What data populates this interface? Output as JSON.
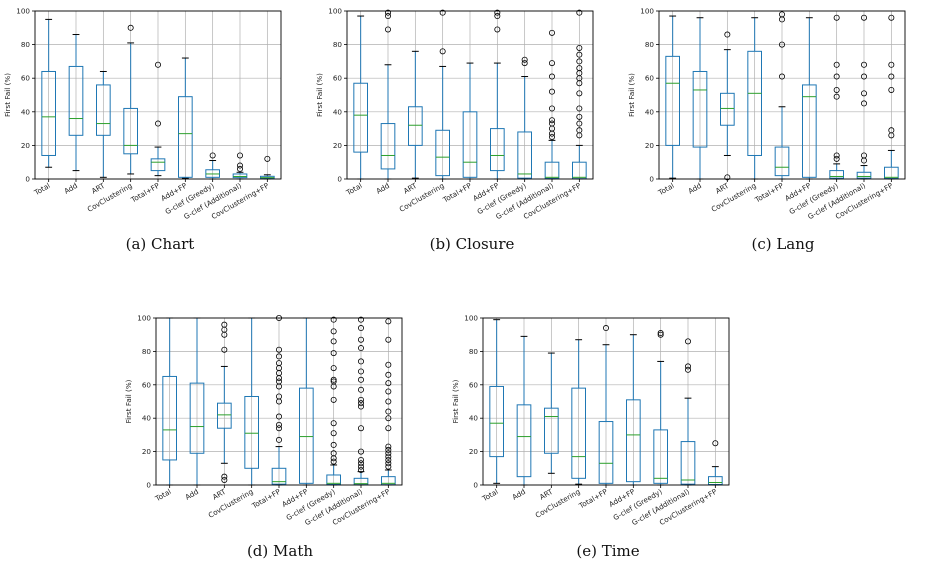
{
  "colors": {
    "box": "#1f77b4",
    "median": "#2ca02c",
    "grid": "#b0b0b0",
    "axis": "#000000"
  },
  "chart_data": [
    {
      "type": "box",
      "caption": "(a)  Chart",
      "ylabel": "First Fail (%)",
      "ylim": [
        0,
        100
      ],
      "yticks": [
        0,
        20,
        40,
        60,
        80,
        100
      ],
      "grid": true,
      "categories": [
        "Total",
        "Add",
        "ART",
        "CovClustering",
        "Total+FP",
        "Add+FP",
        "G-clef (Greedy)",
        "G-clef (Additional)",
        "CovClustering+FP"
      ],
      "series": [
        {
          "q1": 14,
          "median": 37,
          "q3": 64,
          "lo": 7,
          "hi": 95,
          "outliers": []
        },
        {
          "q1": 26,
          "median": 36,
          "q3": 67,
          "lo": 5,
          "hi": 86,
          "outliers": []
        },
        {
          "q1": 26,
          "median": 33,
          "q3": 56,
          "lo": 1,
          "hi": 64,
          "outliers": []
        },
        {
          "q1": 15,
          "median": 20,
          "q3": 42,
          "lo": 3,
          "hi": 81,
          "outliers": [
            90
          ]
        },
        {
          "q1": 5,
          "median": 10,
          "q3": 12,
          "lo": 2,
          "hi": 19,
          "outliers": [
            33,
            68
          ]
        },
        {
          "q1": 1,
          "median": 27,
          "q3": 49,
          "lo": 0.5,
          "hi": 72,
          "outliers": []
        },
        {
          "q1": 1,
          "median": 3,
          "q3": 5.5,
          "lo": 0,
          "hi": 11,
          "outliers": [
            14
          ]
        },
        {
          "q1": 0.8,
          "median": 1.5,
          "q3": 3,
          "lo": 0,
          "hi": 4,
          "outliers": [
            6,
            8,
            14
          ]
        },
        {
          "q1": 0.4,
          "median": 0.8,
          "q3": 1.6,
          "lo": 0,
          "hi": 2.5,
          "outliers": [
            12
          ]
        }
      ]
    },
    {
      "type": "box",
      "caption": "(b)  Closure",
      "ylabel": "First Fail (%)",
      "ylim": [
        0,
        100
      ],
      "yticks": [
        0,
        20,
        40,
        60,
        80,
        100
      ],
      "grid": true,
      "categories": [
        "Total",
        "Add",
        "ART",
        "CovClustering",
        "Total+FP",
        "Add+FP",
        "G-clef (Greedy)",
        "G-clef (Additional)",
        "CovClustering+FP"
      ],
      "series": [
        {
          "q1": 16,
          "median": 38,
          "q3": 57,
          "lo": 0,
          "hi": 97,
          "outliers": []
        },
        {
          "q1": 6,
          "median": 14,
          "q3": 33,
          "lo": 0,
          "hi": 68,
          "outliers": [
            89,
            97,
            99
          ]
        },
        {
          "q1": 20,
          "median": 32,
          "q3": 43,
          "lo": 0.5,
          "hi": 76,
          "outliers": []
        },
        {
          "q1": 2,
          "median": 13,
          "q3": 29,
          "lo": 0,
          "hi": 67,
          "outliers": [
            76,
            99
          ]
        },
        {
          "q1": 1,
          "median": 10,
          "q3": 40,
          "lo": 0,
          "hi": 69,
          "outliers": []
        },
        {
          "q1": 5,
          "median": 14,
          "q3": 30,
          "lo": 0,
          "hi": 69,
          "outliers": [
            89,
            97,
            99
          ]
        },
        {
          "q1": 0.5,
          "median": 3,
          "q3": 28,
          "lo": 0,
          "hi": 61,
          "outliers": [
            69,
            71
          ]
        },
        {
          "q1": 0.3,
          "median": 1,
          "q3": 10,
          "lo": 0,
          "hi": 23,
          "outliers": [
            25,
            27,
            30,
            33,
            35,
            42,
            52,
            61,
            69,
            87
          ]
        },
        {
          "q1": 0.2,
          "median": 1,
          "q3": 10,
          "lo": 0,
          "hi": 20,
          "outliers": [
            26,
            29,
            33,
            37,
            42,
            51,
            57,
            60,
            63,
            66,
            70,
            74,
            78,
            99
          ]
        }
      ]
    },
    {
      "type": "box",
      "caption": "(c)  Lang",
      "ylabel": "First Fail (%)",
      "ylim": [
        0,
        100
      ],
      "yticks": [
        0,
        20,
        40,
        60,
        80,
        100
      ],
      "grid": true,
      "categories": [
        "Total",
        "Add",
        "ART",
        "CovClustering",
        "Total+FP",
        "Add+FP",
        "G-clef (Greedy)",
        "G-clef (Additional)",
        "CovClustering+FP"
      ],
      "series": [
        {
          "q1": 20,
          "median": 57,
          "q3": 73,
          "lo": 0.5,
          "hi": 97,
          "outliers": []
        },
        {
          "q1": 19,
          "median": 53,
          "q3": 64,
          "lo": 0,
          "hi": 96,
          "outliers": []
        },
        {
          "q1": 32,
          "median": 42,
          "q3": 51,
          "lo": 14,
          "hi": 77,
          "outliers": [
            1,
            86
          ]
        },
        {
          "q1": 14,
          "median": 51,
          "q3": 76,
          "lo": 0,
          "hi": 96,
          "outliers": []
        },
        {
          "q1": 2,
          "median": 7,
          "q3": 19,
          "lo": 0,
          "hi": 43,
          "outliers": [
            61,
            80,
            95,
            98
          ]
        },
        {
          "q1": 1,
          "median": 49,
          "q3": 56,
          "lo": 0,
          "hi": 96,
          "outliers": []
        },
        {
          "q1": 0.5,
          "median": 1.5,
          "q3": 5,
          "lo": 0,
          "hi": 9,
          "outliers": [
            12,
            14,
            49,
            53,
            61,
            68,
            96
          ]
        },
        {
          "q1": 0.5,
          "median": 1.5,
          "q3": 4,
          "lo": 0,
          "hi": 8,
          "outliers": [
            11,
            14,
            45,
            51,
            61,
            68,
            96
          ]
        },
        {
          "q1": 0.3,
          "median": 1,
          "q3": 7,
          "lo": 0,
          "hi": 17,
          "outliers": [
            26,
            29,
            53,
            61,
            68,
            96
          ]
        }
      ]
    },
    {
      "type": "box",
      "caption": "(d)  Math",
      "ylabel": "First Fail (%)",
      "ylim": [
        0,
        100
      ],
      "yticks": [
        0,
        20,
        40,
        60,
        80,
        100
      ],
      "grid": true,
      "categories": [
        "Total",
        "Add",
        "ART",
        "CovClustering",
        "Total+FP",
        "Add+FP",
        "G-clef (Greedy)",
        "G-clef (Additional)",
        "CovClustering+FP"
      ],
      "series": [
        {
          "q1": 15,
          "median": 33,
          "q3": 65,
          "lo": 0,
          "hi": 100,
          "outliers": []
        },
        {
          "q1": 19,
          "median": 35,
          "q3": 61,
          "lo": 0,
          "hi": 100,
          "outliers": []
        },
        {
          "q1": 34,
          "median": 42,
          "q3": 49,
          "lo": 13,
          "hi": 71,
          "outliers": [
            3,
            5,
            81,
            90,
            93,
            96
          ]
        },
        {
          "q1": 10,
          "median": 31,
          "q3": 53,
          "lo": 0,
          "hi": 100,
          "outliers": []
        },
        {
          "q1": 0.5,
          "median": 2,
          "q3": 10,
          "lo": 0,
          "hi": 23,
          "outliers": [
            27,
            34,
            36,
            41,
            50,
            53,
            59,
            62,
            64,
            67,
            70,
            73,
            77,
            81,
            100
          ]
        },
        {
          "q1": 1,
          "median": 29,
          "q3": 58,
          "lo": 0,
          "hi": 100,
          "outliers": []
        },
        {
          "q1": 0.3,
          "median": 1,
          "q3": 6,
          "lo": 0,
          "hi": 12,
          "outliers": [
            14,
            16,
            19,
            24,
            31,
            37,
            51,
            59,
            62,
            63,
            70,
            79,
            86,
            92,
            99
          ]
        },
        {
          "q1": 0.2,
          "median": 0.8,
          "q3": 4,
          "lo": 0,
          "hi": 8,
          "outliers": [
            9,
            11,
            13,
            15,
            20,
            34,
            47,
            49,
            51,
            57,
            63,
            68,
            74,
            82,
            87,
            94,
            99
          ]
        },
        {
          "q1": 0.2,
          "median": 1,
          "q3": 5,
          "lo": 0,
          "hi": 9,
          "outliers": [
            11,
            13,
            15,
            17,
            19,
            21,
            23,
            34,
            40,
            44,
            50,
            56,
            61,
            66,
            72,
            87,
            98
          ]
        }
      ]
    },
    {
      "type": "box",
      "caption": "(e)  Time",
      "ylabel": "First Fail (%)",
      "ylim": [
        0,
        100
      ],
      "yticks": [
        0,
        20,
        40,
        60,
        80,
        100
      ],
      "grid": true,
      "categories": [
        "Total",
        "Add",
        "ART",
        "CovClustering",
        "Total+FP",
        "Add+FP",
        "G-clef (Greedy)",
        "G-clef (Additional)",
        "CovClustering+FP"
      ],
      "series": [
        {
          "q1": 17,
          "median": 37,
          "q3": 59,
          "lo": 1,
          "hi": 99,
          "outliers": []
        },
        {
          "q1": 5,
          "median": 29,
          "q3": 48,
          "lo": 0,
          "hi": 89,
          "outliers": []
        },
        {
          "q1": 19,
          "median": 41,
          "q3": 46,
          "lo": 7,
          "hi": 79,
          "outliers": []
        },
        {
          "q1": 4,
          "median": 17,
          "q3": 58,
          "lo": 0.5,
          "hi": 87,
          "outliers": []
        },
        {
          "q1": 1,
          "median": 13,
          "q3": 38,
          "lo": 0,
          "hi": 84,
          "outliers": [
            94
          ]
        },
        {
          "q1": 2,
          "median": 30,
          "q3": 51,
          "lo": 0,
          "hi": 90,
          "outliers": []
        },
        {
          "q1": 1,
          "median": 4,
          "q3": 33,
          "lo": 0,
          "hi": 74,
          "outliers": [
            90,
            91
          ]
        },
        {
          "q1": 0.5,
          "median": 3,
          "q3": 26,
          "lo": 0,
          "hi": 52,
          "outliers": [
            69,
            71,
            86
          ]
        },
        {
          "q1": 0.3,
          "median": 1.5,
          "q3": 5,
          "lo": 0,
          "hi": 11,
          "outliers": [
            25
          ]
        }
      ]
    }
  ]
}
